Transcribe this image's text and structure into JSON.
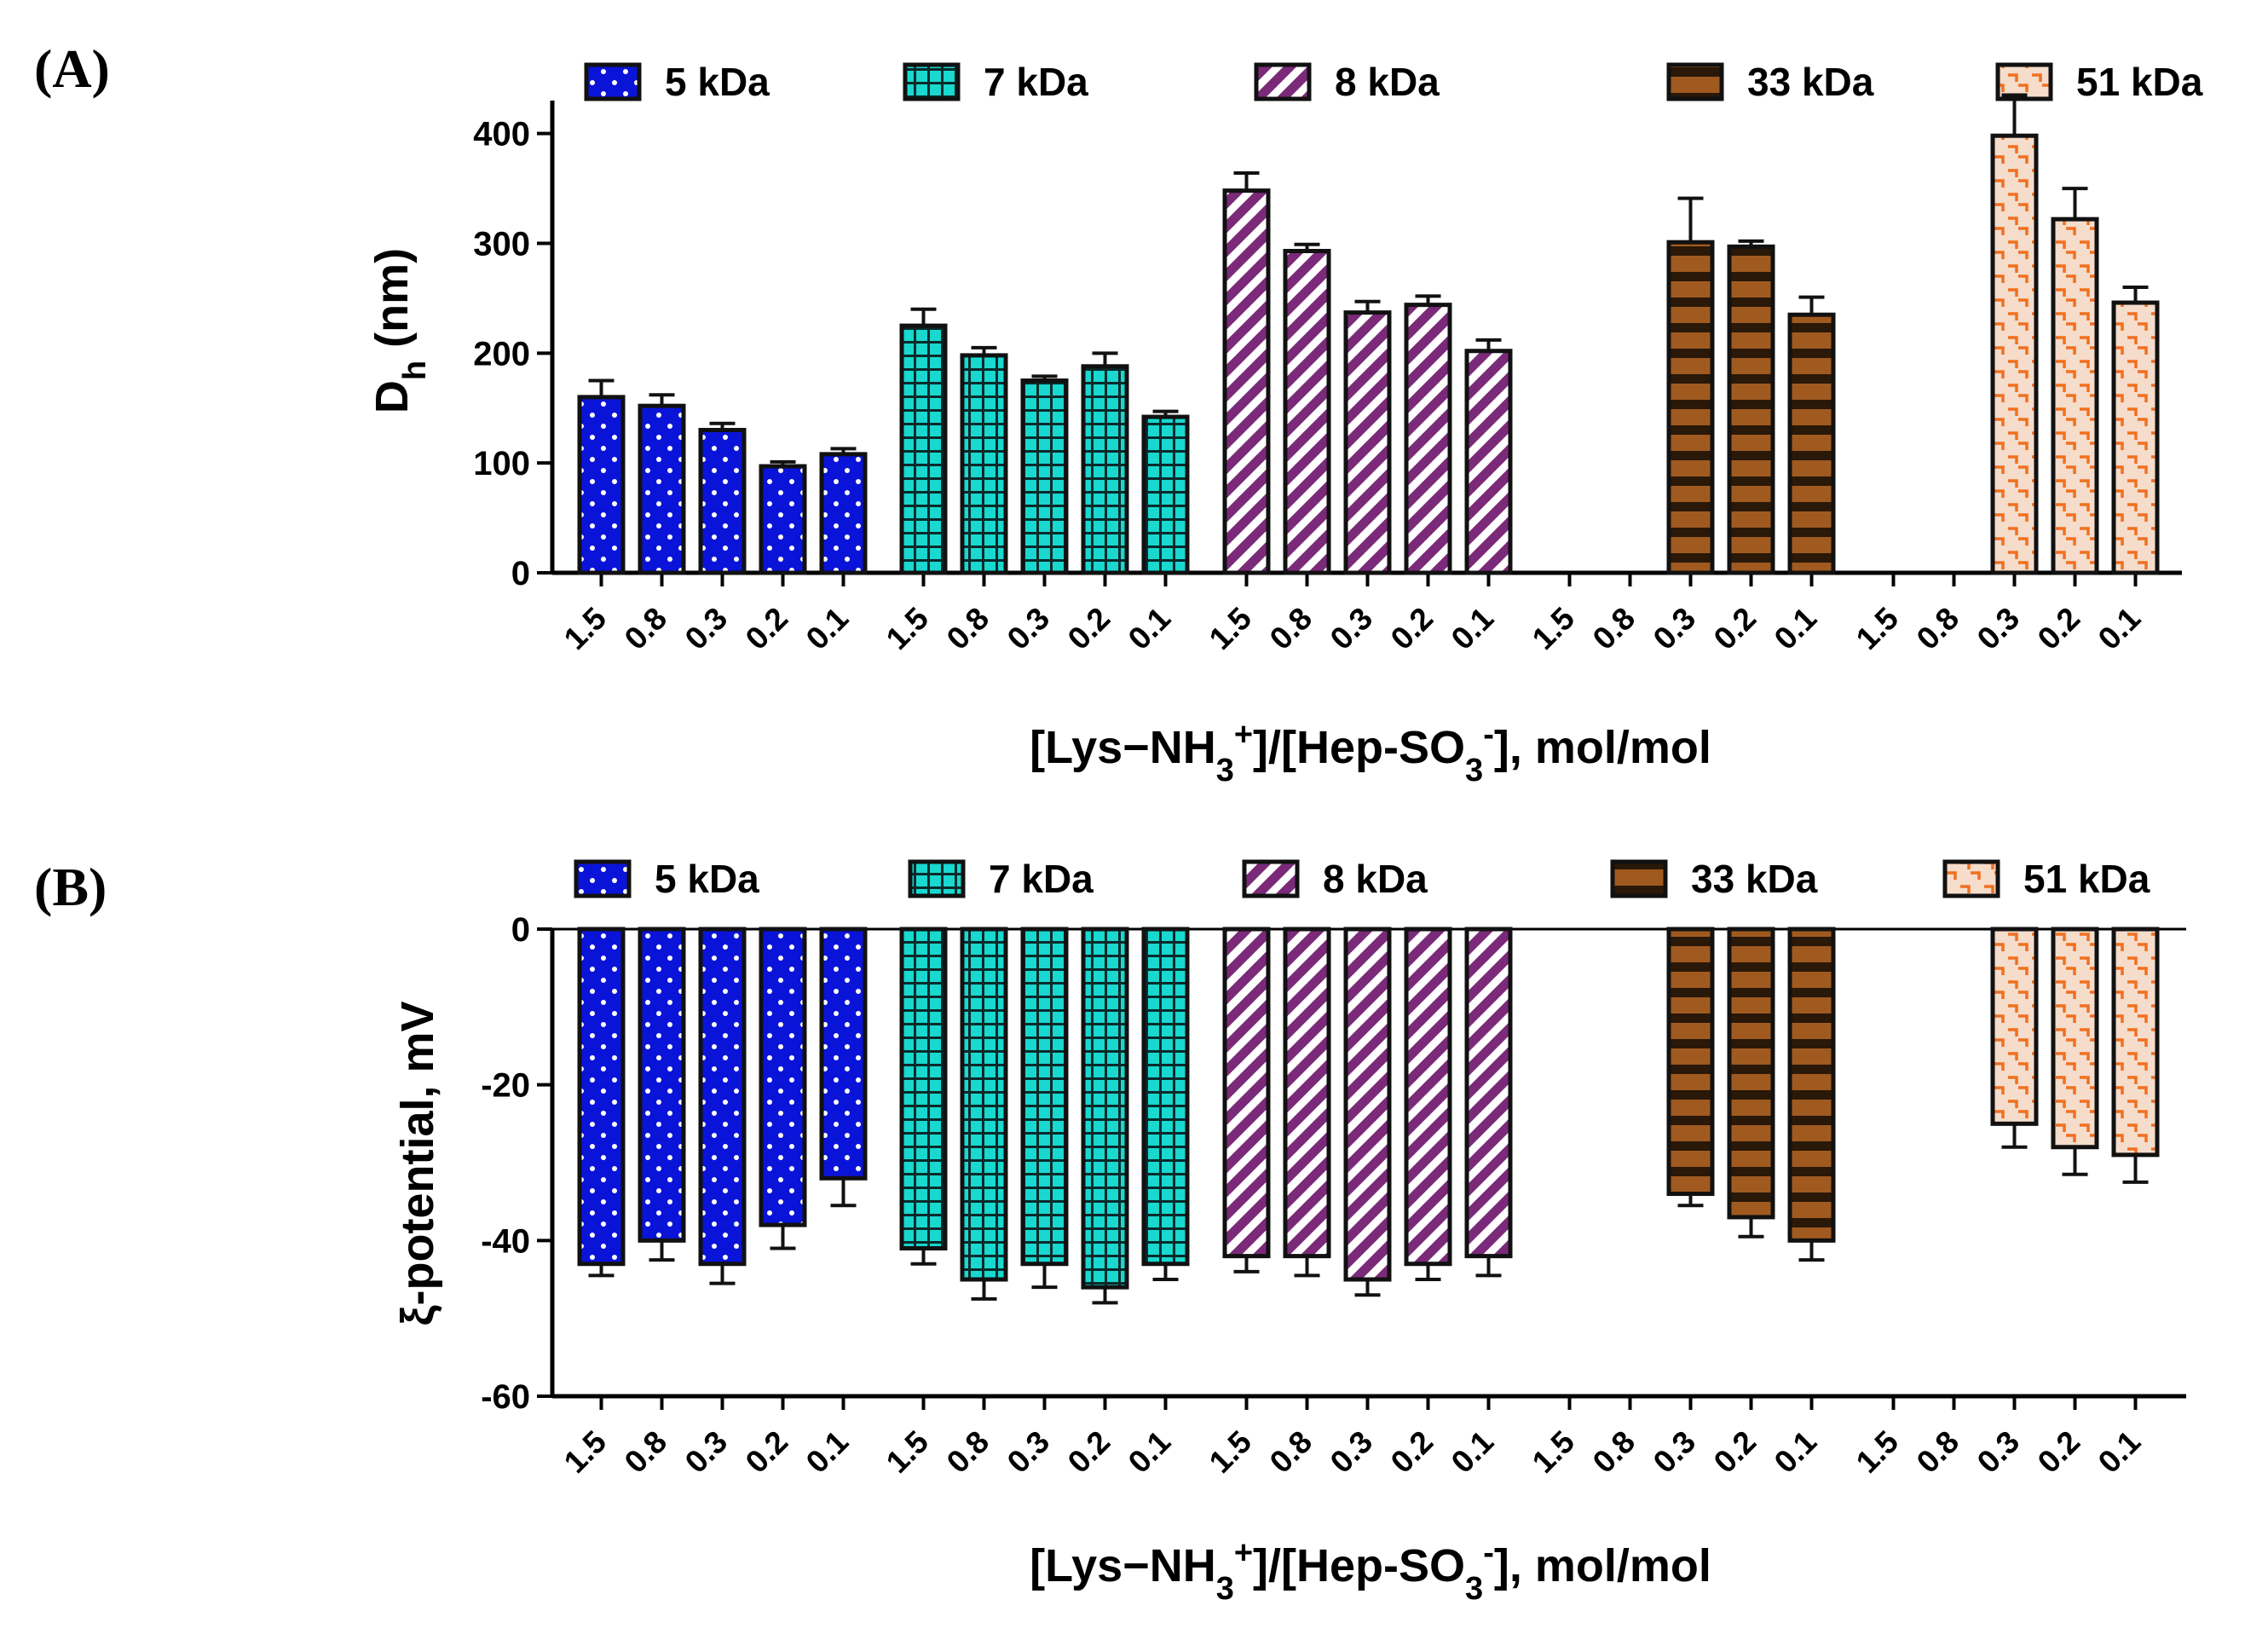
{
  "series_styles": [
    {
      "name": "5 kDa",
      "color": "#0a14d8",
      "pattern": "dots"
    },
    {
      "name": "7 kDa",
      "color": "#18d8d0",
      "pattern": "grid"
    },
    {
      "name": "8 kDa",
      "color": "#7a2a78",
      "pattern": "diag"
    },
    {
      "name": "33 kDa",
      "color": "#a05a20",
      "pattern": "hstripes"
    },
    {
      "name": "51 kDa",
      "color": "#f0c8b0",
      "pattern": "orange-marks"
    }
  ],
  "chart_data": [
    {
      "panel_label": "(A)",
      "type": "bar",
      "ylabel_main": "D",
      "ylabel_sub": "h",
      "ylabel_rest": " (nm)",
      "xlabel": {
        "pre": "[Lys−NH",
        "sub1": "3",
        "sup1": "+",
        "mid": "]/[Hep-SO",
        "sub2": "3",
        "sup2": "-",
        "post": "], mol/mol"
      },
      "ylim": [
        0,
        430
      ],
      "yticks": [
        {
          "value": 0,
          "label": "0"
        },
        {
          "value": 100,
          "label": "100"
        },
        {
          "value": 200,
          "label": "200"
        },
        {
          "value": 300,
          "label": "300"
        },
        {
          "value": 400,
          "label": "400"
        }
      ],
      "categories": [
        "1.5",
        "0.8",
        "0.3",
        "0.2",
        "0.1"
      ],
      "series": [
        {
          "name": "5 kDa",
          "values": [
            160,
            152,
            130,
            97,
            108
          ],
          "errors": [
            15,
            10,
            6,
            4,
            5
          ]
        },
        {
          "name": "7 kDa",
          "values": [
            225,
            198,
            175,
            188,
            142
          ],
          "errors": [
            15,
            7,
            4,
            12,
            5
          ]
        },
        {
          "name": "8 kDa",
          "values": [
            348,
            293,
            237,
            244,
            202
          ],
          "errors": [
            16,
            6,
            10,
            8,
            10
          ]
        },
        {
          "name": "33 kDa",
          "values": [
            null,
            null,
            301,
            297,
            235
          ],
          "errors": [
            null,
            null,
            40,
            5,
            16
          ]
        },
        {
          "name": "51 kDa",
          "values": [
            null,
            null,
            398,
            322,
            246
          ],
          "errors": [
            null,
            null,
            37,
            28,
            14
          ]
        }
      ]
    },
    {
      "panel_label": "(B)",
      "type": "bar",
      "ylabel_main": "ξ-potential, mV",
      "xlabel": {
        "pre": "[Lys−NH",
        "sub1": "3",
        "sup1": "+",
        "mid": "]/[Hep-SO",
        "sub2": "3",
        "sup2": "-",
        "post": "], mol/mol"
      },
      "ylim": [
        -60,
        0
      ],
      "yticks": [
        {
          "value": 0,
          "label": "0"
        },
        {
          "value": -20,
          "label": "-20"
        },
        {
          "value": -40,
          "label": "-40"
        },
        {
          "value": -60,
          "label": "-60"
        }
      ],
      "categories": [
        "1.5",
        "0.8",
        "0.3",
        "0.2",
        "0.1"
      ],
      "series": [
        {
          "name": "5 kDa",
          "values": [
            -43,
            -40,
            -43,
            -38,
            -32
          ],
          "errors": [
            1.5,
            2.5,
            2.5,
            3,
            3.5
          ]
        },
        {
          "name": "7 kDa",
          "values": [
            -41,
            -45,
            -43,
            -46,
            -43
          ],
          "errors": [
            2,
            2.5,
            3,
            2,
            2
          ]
        },
        {
          "name": "8 kDa",
          "values": [
            -42,
            -42,
            -45,
            -43,
            -42
          ],
          "errors": [
            2,
            2.5,
            2,
            2,
            2.5
          ]
        },
        {
          "name": "33 kDa",
          "values": [
            null,
            null,
            -34,
            -37,
            -40
          ],
          "errors": [
            null,
            null,
            1.5,
            2.5,
            2.5
          ]
        },
        {
          "name": "51 kDa",
          "values": [
            null,
            null,
            -25,
            -28,
            -29
          ],
          "errors": [
            null,
            null,
            3,
            3.5,
            3.5
          ]
        }
      ]
    }
  ]
}
